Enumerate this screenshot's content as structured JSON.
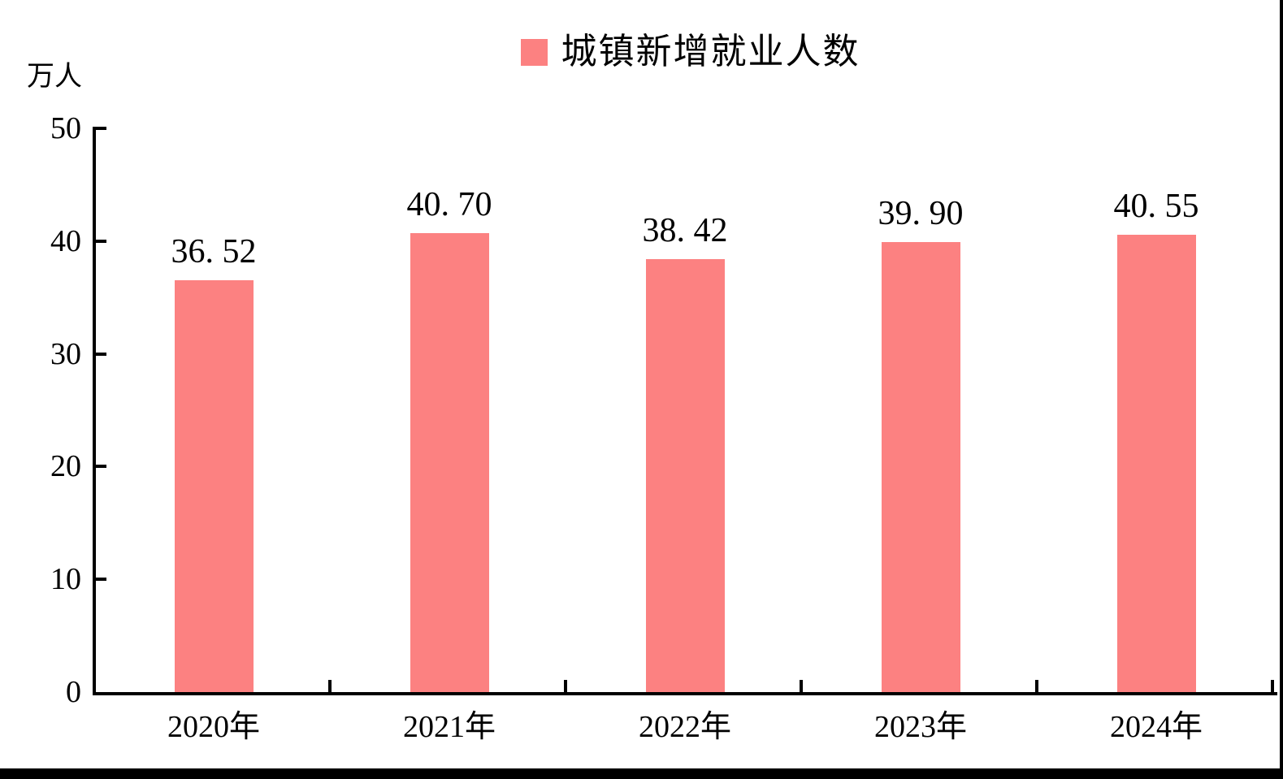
{
  "unit_label": "万人",
  "legend": {
    "label": "城镇新增就业人数",
    "swatch_color": "#FC8181"
  },
  "chart_data": {
    "type": "bar",
    "categories": [
      "2020年",
      "2021年",
      "2022年",
      "2023年",
      "2024年"
    ],
    "series": [
      {
        "name": "城镇新增就业人数",
        "values": [
          36.52,
          40.7,
          38.42,
          39.9,
          40.55
        ]
      }
    ],
    "value_labels": [
      "36. 52",
      "40. 70",
      "38. 42",
      "39. 90",
      "40. 55"
    ],
    "title": "",
    "xlabel": "",
    "ylabel": "万人",
    "ylim": [
      0,
      50
    ],
    "yticks": [
      0,
      10,
      20,
      30,
      40,
      50
    ],
    "bar_color": "#FC8181",
    "axis_color": "#000000",
    "text_color": "#000000",
    "grid": false,
    "legend_position": "top-center"
  }
}
